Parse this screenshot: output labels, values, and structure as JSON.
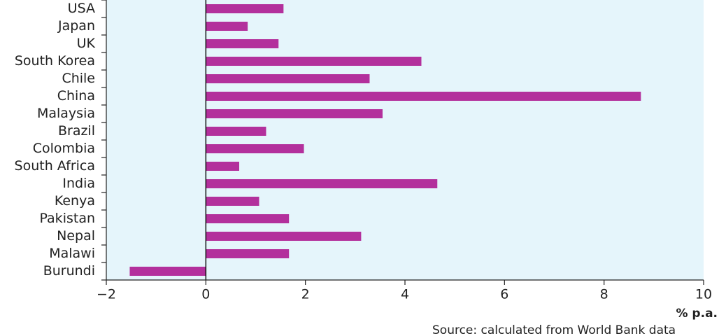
{
  "chart_data": {
    "type": "hbar",
    "categories": [
      "USA",
      "Japan",
      "UK",
      "South Korea",
      "Chile",
      "China",
      "Malaysia",
      "Brazil",
      "Colombia",
      "South Africa",
      "India",
      "Kenya",
      "Pakistan",
      "Nepal",
      "Malawi",
      "Burundi"
    ],
    "values": [
      1.56,
      0.84,
      1.46,
      4.33,
      3.29,
      8.74,
      3.55,
      1.21,
      1.97,
      0.67,
      4.65,
      1.07,
      1.67,
      3.12,
      1.67,
      -1.53
    ],
    "color": "#b3309c",
    "xlim": [
      -2,
      10
    ],
    "xticks": [
      {
        "value": -2,
        "label": "−2"
      },
      0,
      2,
      4,
      6,
      8,
      10
    ],
    "x_label": "% p.a.",
    "source": "Source: calculated from World Bank data"
  }
}
